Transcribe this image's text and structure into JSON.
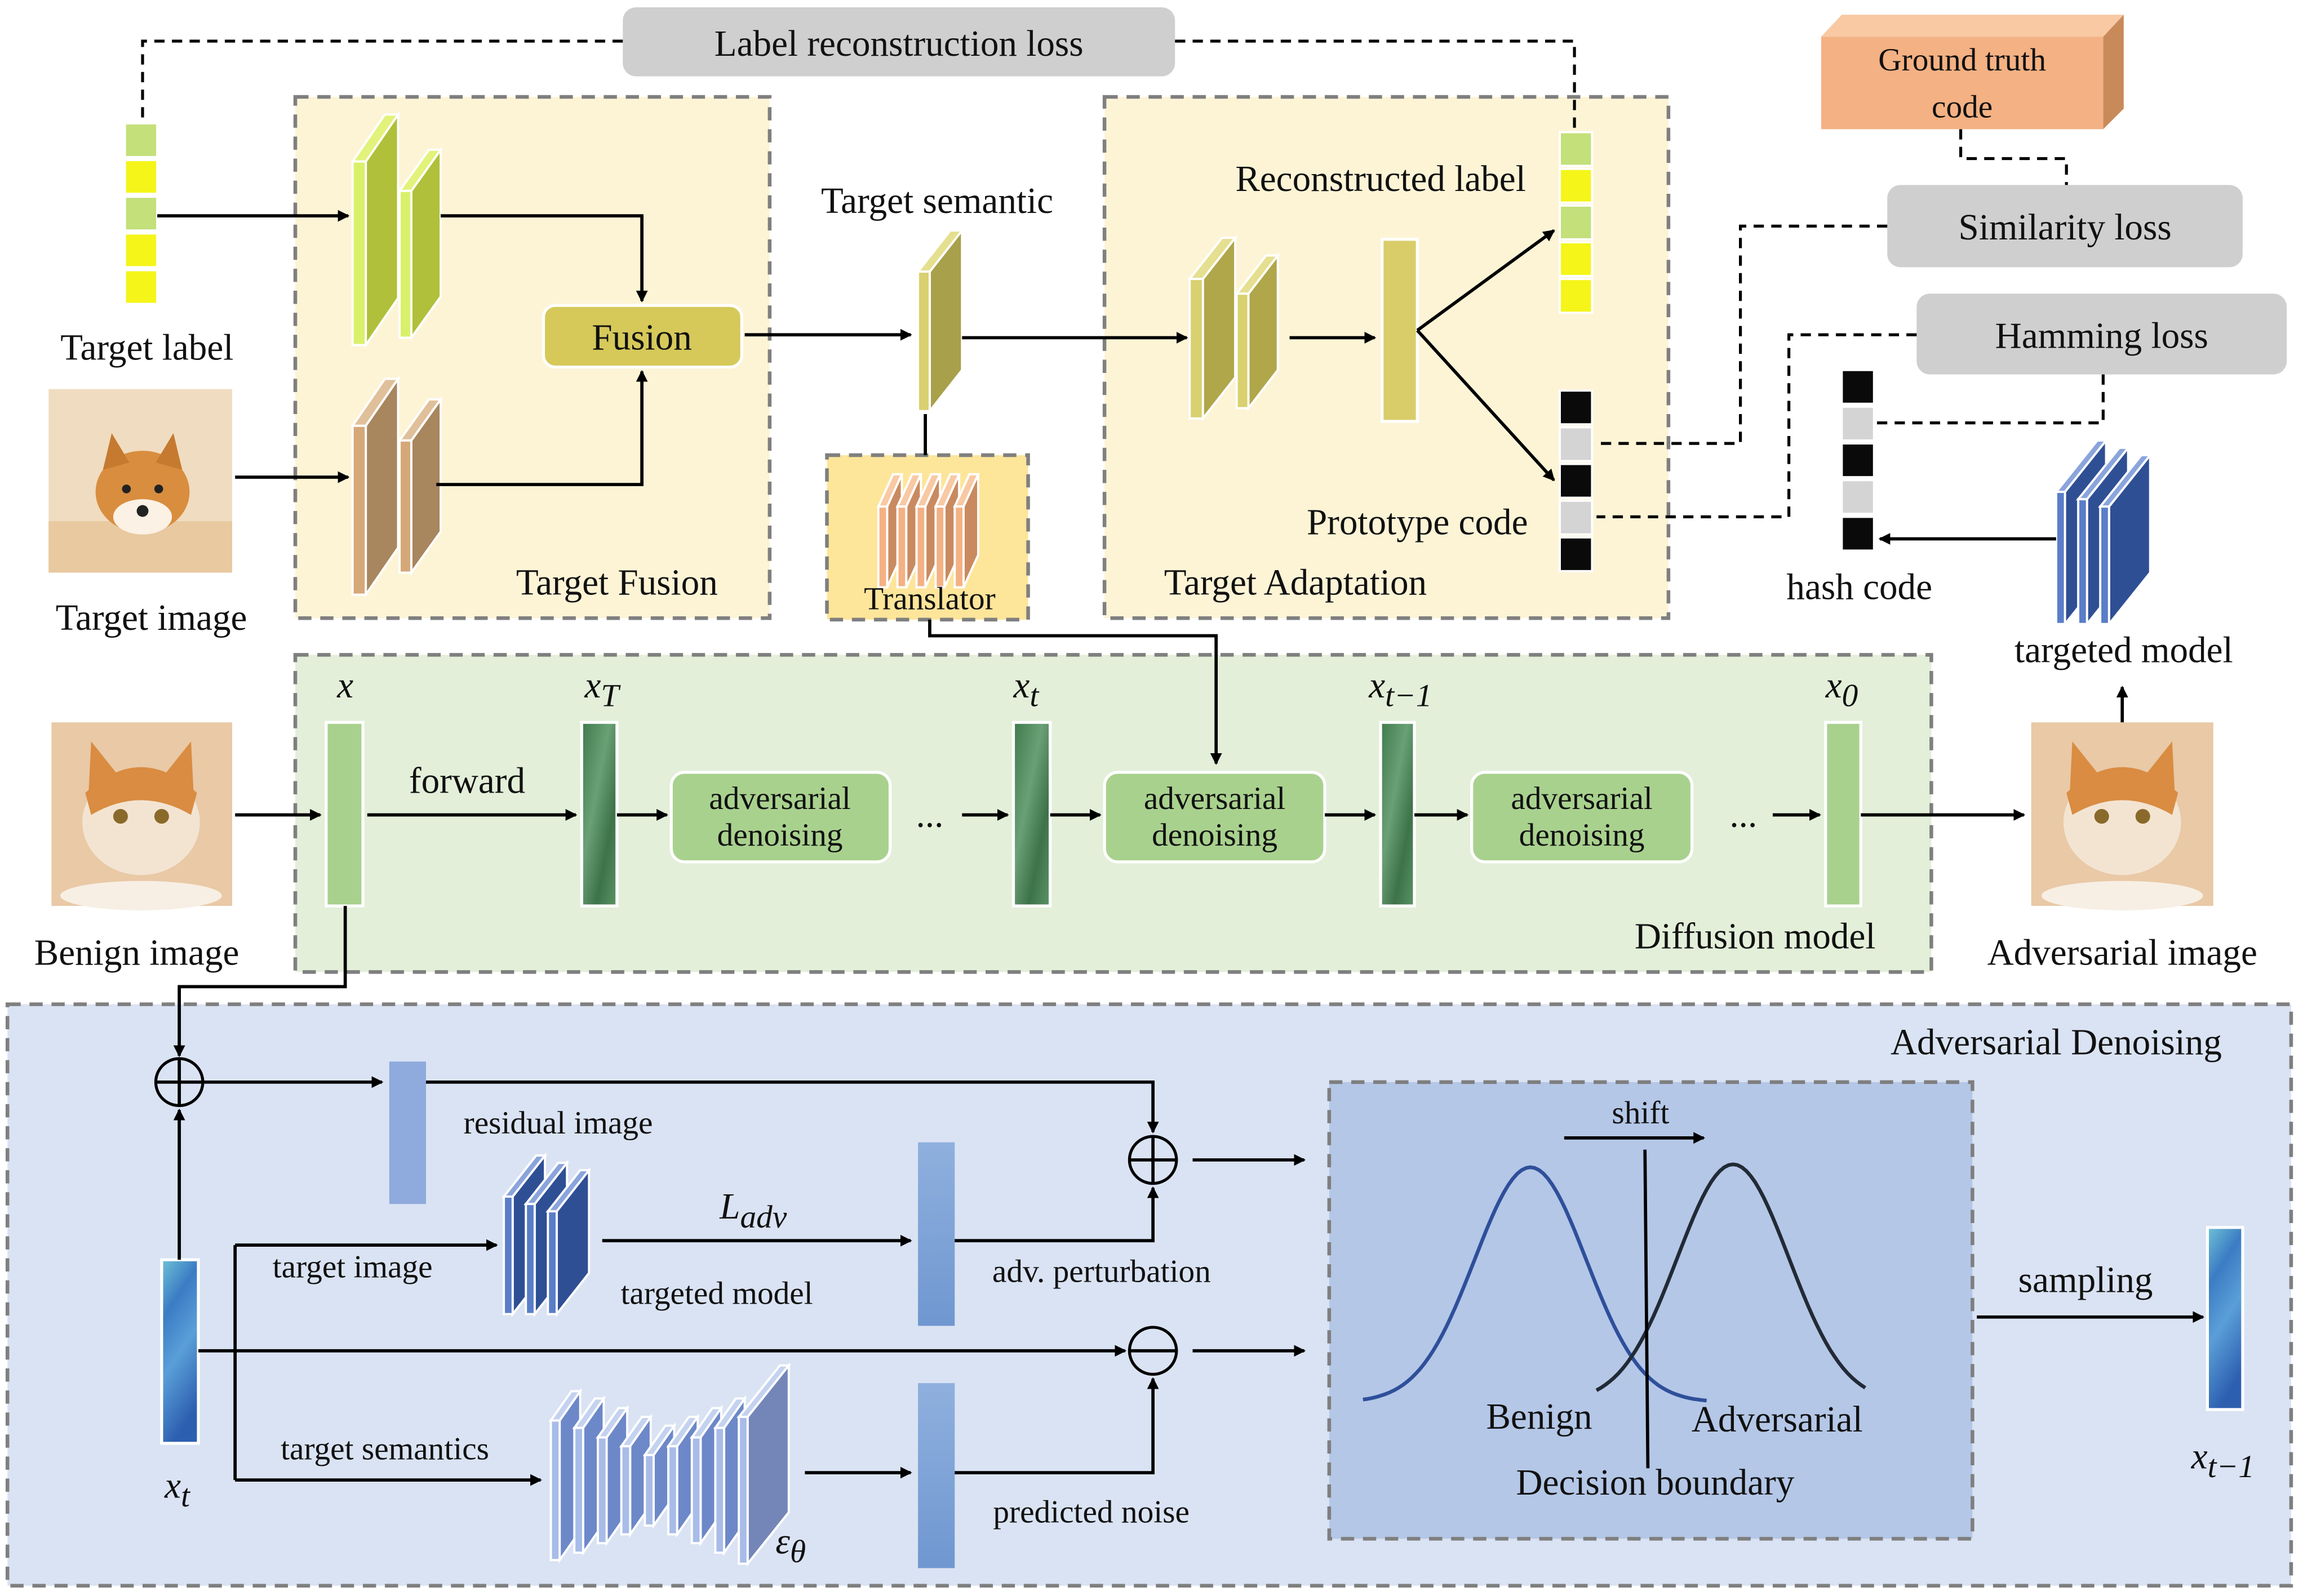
{
  "losses": {
    "label_reconstruction": "Label reconstruction loss",
    "similarity": "Similarity loss",
    "hamming": "Hamming loss",
    "ground_truth_code_line1": "Ground truth",
    "ground_truth_code_line2": "code"
  },
  "target_fusion": {
    "title": "Target Fusion",
    "target_label": "Target label",
    "target_image": "Target image",
    "fusion": "Fusion"
  },
  "target_semantic": "Target semantic",
  "translator": "Translator",
  "target_adaptation": {
    "title": "Target Adaptation",
    "reconstructed_label": "Reconstructed label",
    "prototype_code": "Prototype code"
  },
  "hash": {
    "hash_code": "hash code",
    "targeted_model": "targeted model"
  },
  "diffusion": {
    "title": "Diffusion model",
    "benign_image": "Benign image",
    "adversarial_image": "Adversarial image",
    "forward": "forward",
    "adv_denoising_line1": "adversarial",
    "adv_denoising_line2": "denoising",
    "ellipsis": "...",
    "x": "x",
    "x_T": "T",
    "x_t": "t",
    "x_tm1": "t−1",
    "x_0": "0"
  },
  "adversarial_denoising": {
    "title": "Adversarial Denoising",
    "residual_image": "residual image",
    "target_image": "target image",
    "targeted_model": "targeted model",
    "l_adv": "adv",
    "adv_perturbation": "adv. perturbation",
    "target_semantics": "target semantics",
    "predicted_noise": "predicted noise",
    "epsilon": "ε",
    "theta": "θ",
    "x_t": "t",
    "sampling": "sampling",
    "x_tm1": "t−1",
    "shift": "shift",
    "benign": "Benign",
    "adversarial": "Adversarial",
    "decision_boundary": "Decision boundary"
  },
  "colors": {
    "fusion_panel": "#fdf4d6",
    "diffusion_panel": "#e3efd9",
    "denoising_panel": "#dae3f3",
    "decision_panel": "#b4c7e7",
    "benign_curve": "#2f4f9a",
    "adversarial_curve": "#222a36"
  }
}
